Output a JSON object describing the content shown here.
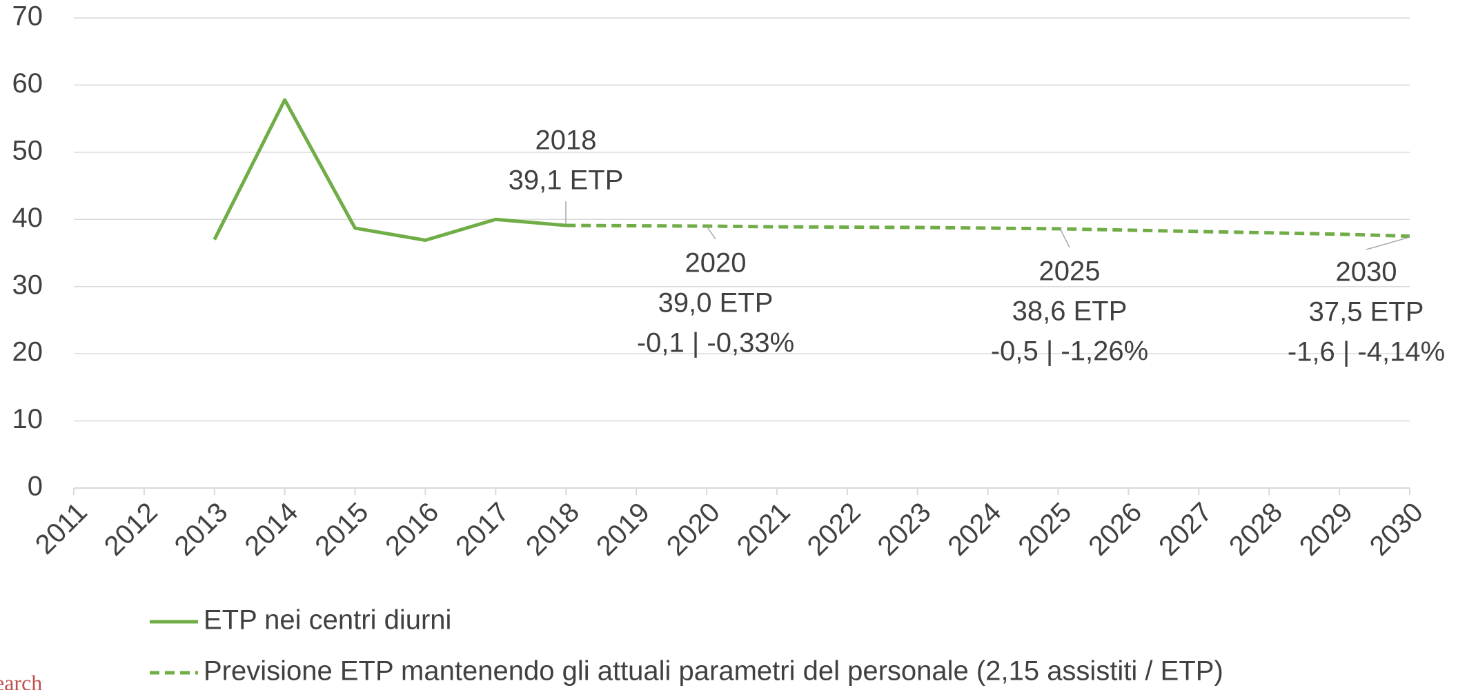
{
  "chart_data": {
    "type": "line",
    "categories": [
      "2011",
      "2012",
      "2013",
      "2014",
      "2015",
      "2016",
      "2017",
      "2018",
      "2019",
      "2020",
      "2021",
      "2022",
      "2023",
      "2024",
      "2025",
      "2026",
      "2027",
      "2028",
      "2029",
      "2030"
    ],
    "series": [
      {
        "name": "ETP nei centri diurni",
        "color": "#70ad47",
        "dashed": false,
        "values": [
          null,
          null,
          37.0,
          57.8,
          38.7,
          36.9,
          40.0,
          39.1,
          null,
          null,
          null,
          null,
          null,
          null,
          null,
          null,
          null,
          null,
          null,
          null
        ]
      },
      {
        "name": "Previsione ETP mantenendo gli attuali parametri del personale (2,15 assistiti / ETP)",
        "color": "#70ad47",
        "dashed": true,
        "values": [
          null,
          null,
          null,
          null,
          null,
          null,
          null,
          39.1,
          39.05,
          39.0,
          38.9,
          38.85,
          38.8,
          38.7,
          38.6,
          38.4,
          38.2,
          38.0,
          37.8,
          37.5
        ]
      }
    ],
    "ylim": [
      0,
      70
    ],
    "yticks": [
      0,
      10,
      20,
      30,
      40,
      50,
      60,
      70
    ],
    "grid": true,
    "annotations": [
      {
        "lines": [
          "2018",
          "39,1 ETP"
        ]
      },
      {
        "lines": [
          "2020",
          "39,0 ETP",
          "-0,1 | -0,33%"
        ]
      },
      {
        "lines": [
          "2025",
          "38,6 ETP",
          "-0,5 | -1,26%"
        ]
      },
      {
        "lines": [
          "2030",
          "37,5 ETP",
          "-1,6 | -4,14%"
        ]
      }
    ],
    "source_fragment": "earch"
  }
}
